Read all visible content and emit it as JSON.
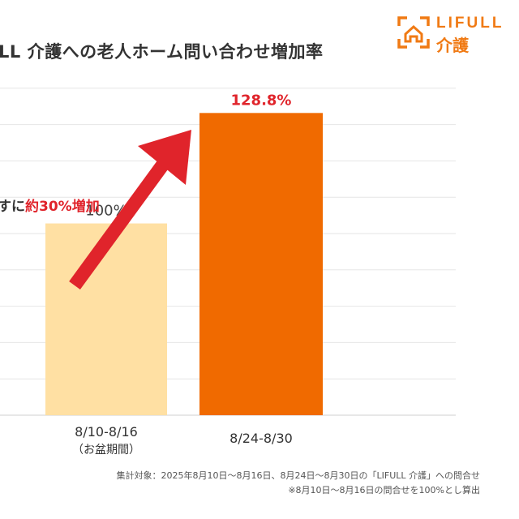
{
  "title": "LL 介護への老人ホーム問い合わせ増加率",
  "logo": {
    "text_en": "LIFULL",
    "text_jp": "介護",
    "color": "#F07A14"
  },
  "annotation": {
    "prefix": "すに",
    "highlight": "約30%増加",
    "highlight_color": "#E0242B",
    "arrow_color": "#E0242B"
  },
  "chart_data": {
    "type": "bar",
    "categories": [
      {
        "line1": "8/10-8/16",
        "line2": "（お盆期間）"
      },
      {
        "line1": "8/24-8/30",
        "line2": ""
      }
    ],
    "values": [
      100,
      128.8
    ],
    "value_labels": [
      "100%",
      "128.8%"
    ],
    "bar_colors": [
      "#FFE0A3",
      "#F06A00"
    ],
    "value_label_colors": [
      "#444444",
      "#E0242B"
    ],
    "ylim": [
      50,
      135
    ],
    "grid": true
  },
  "notes": [
    "集計対象：2025年8月10日～8月16日、8月24日～8月30日の「LIFULL 介護」への問合せ",
    "※8月10日～8月16日の問合せを100%とし算出"
  ]
}
